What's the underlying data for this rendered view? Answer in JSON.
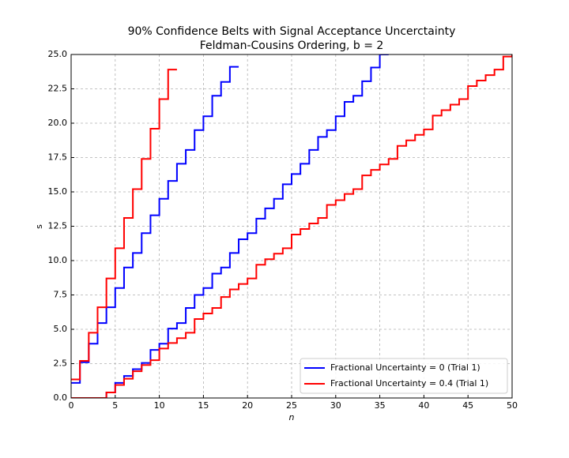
{
  "chart_data": {
    "type": "step",
    "title": "90% Confidence Belts with Signal Acceptance Uncerctainty",
    "subtitle": "Feldman-Cousins Ordering, b = 2",
    "x_label": "n",
    "y_label": "s",
    "x": [
      0,
      1,
      2,
      3,
      4,
      5,
      6,
      7,
      8,
      9,
      10,
      11,
      12,
      13,
      14,
      15,
      16,
      17,
      18,
      19,
      20,
      21,
      22,
      23,
      24,
      25,
      26,
      27,
      28,
      29,
      30,
      31,
      32,
      33,
      34,
      35,
      36,
      37,
      38,
      39,
      40,
      41,
      42,
      43,
      44,
      45,
      46,
      47,
      48,
      49,
      50
    ],
    "series": [
      {
        "name": "Fractional Uncertainty = 0 (Trial 1)",
        "color": "#0000ff",
        "upper": [
          1.1,
          2.6,
          3.95,
          5.45,
          6.6,
          8.0,
          9.5,
          10.55,
          12.0,
          13.3,
          14.5,
          15.8,
          17.05,
          18.05,
          19.5,
          20.5,
          22.0,
          23.0,
          24.1,
          null,
          null,
          null,
          null,
          null,
          null,
          null,
          null,
          null,
          null,
          null,
          null,
          null,
          null,
          null,
          null,
          null,
          null,
          null,
          null,
          null,
          null,
          null,
          null,
          null,
          null,
          null,
          null,
          null,
          null,
          null,
          null
        ],
        "lower": [
          0,
          0,
          0,
          0,
          0.4,
          1.1,
          1.6,
          2.1,
          2.55,
          3.5,
          3.95,
          5.05,
          5.45,
          6.55,
          7.5,
          8.0,
          9.05,
          9.5,
          10.55,
          11.55,
          12.0,
          13.05,
          13.8,
          14.5,
          15.55,
          16.3,
          17.05,
          18.05,
          19.0,
          19.5,
          20.5,
          21.55,
          22.0,
          23.05,
          24.05,
          25.0,
          null,
          null,
          null,
          null,
          null,
          null,
          null,
          null,
          null,
          null,
          null,
          null,
          null,
          null,
          null
        ]
      },
      {
        "name": "Fractional Uncertainty = 0.4 (Trial 1)",
        "color": "#ff0000",
        "upper": [
          1.35,
          2.7,
          4.75,
          6.6,
          8.7,
          10.9,
          13.1,
          15.2,
          17.4,
          19.6,
          21.75,
          23.9,
          null,
          null,
          null,
          null,
          null,
          null,
          null,
          null,
          null,
          null,
          null,
          null,
          null,
          null,
          null,
          null,
          null,
          null,
          null,
          null,
          null,
          null,
          null,
          null,
          null,
          null,
          null,
          null,
          null,
          null,
          null,
          null,
          null,
          null,
          null,
          null,
          null,
          null,
          null
        ],
        "lower": [
          0,
          0,
          0,
          0,
          0.4,
          0.95,
          1.4,
          1.95,
          2.4,
          2.75,
          3.6,
          4.0,
          4.35,
          4.75,
          5.75,
          6.15,
          6.55,
          7.35,
          7.9,
          8.3,
          8.7,
          9.7,
          10.1,
          10.5,
          10.9,
          11.9,
          12.3,
          12.7,
          13.1,
          14.05,
          14.4,
          14.85,
          15.2,
          16.2,
          16.6,
          17.0,
          17.4,
          18.35,
          18.75,
          19.15,
          19.55,
          20.55,
          20.95,
          21.35,
          21.75,
          22.7,
          23.1,
          23.5,
          23.9,
          24.85,
          25.0
        ]
      }
    ],
    "xlim": [
      0,
      50
    ],
    "xticks": [
      0,
      5,
      10,
      15,
      20,
      25,
      30,
      35,
      40,
      45,
      50
    ],
    "ylim": [
      0,
      25
    ],
    "yticks": [
      {
        "value": 0,
        "label": "0.0"
      },
      2.5,
      {
        "value": 5,
        "label": "5.0"
      },
      7.5,
      {
        "value": 10,
        "label": "10.0"
      },
      12.5,
      {
        "value": 15,
        "label": "15.0"
      },
      17.5,
      {
        "value": 20,
        "label": "20.0"
      },
      22.5,
      {
        "value": 25,
        "label": "25.0"
      }
    ],
    "grid": true,
    "legend": "lower right"
  }
}
